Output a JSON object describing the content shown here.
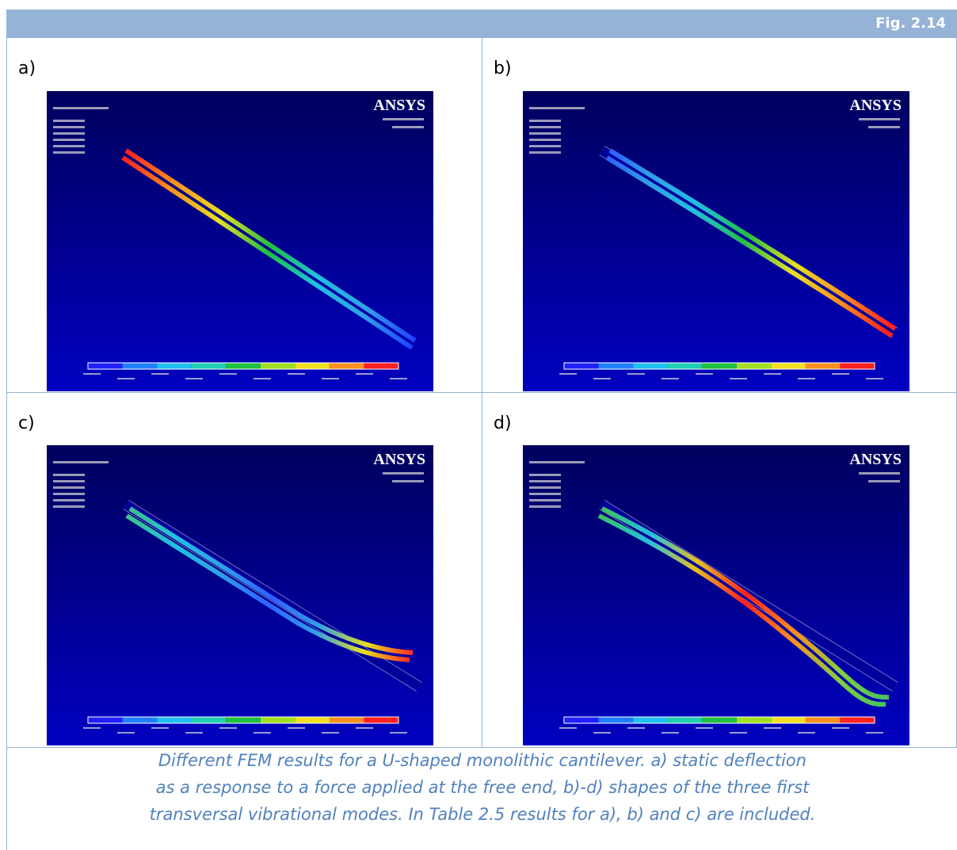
{
  "header": {
    "figure": "Fig. 2.14"
  },
  "panels": [
    {
      "label": "a)",
      "logo": "ANSYS"
    },
    {
      "label": "b)",
      "logo": "ANSYS"
    },
    {
      "label": "c)",
      "logo": "ANSYS"
    },
    {
      "label": "d)",
      "logo": "ANSYS"
    }
  ],
  "caption": {
    "lines": [
      "Different FEM results for a U-shaped monolithic cantilever. a) static deflection",
      "as a response to a force applied at the free end, b)-d) shapes of the three first",
      "transversal vibrational modes. In Table 2.5 results for a), b) and c) are included."
    ]
  }
}
